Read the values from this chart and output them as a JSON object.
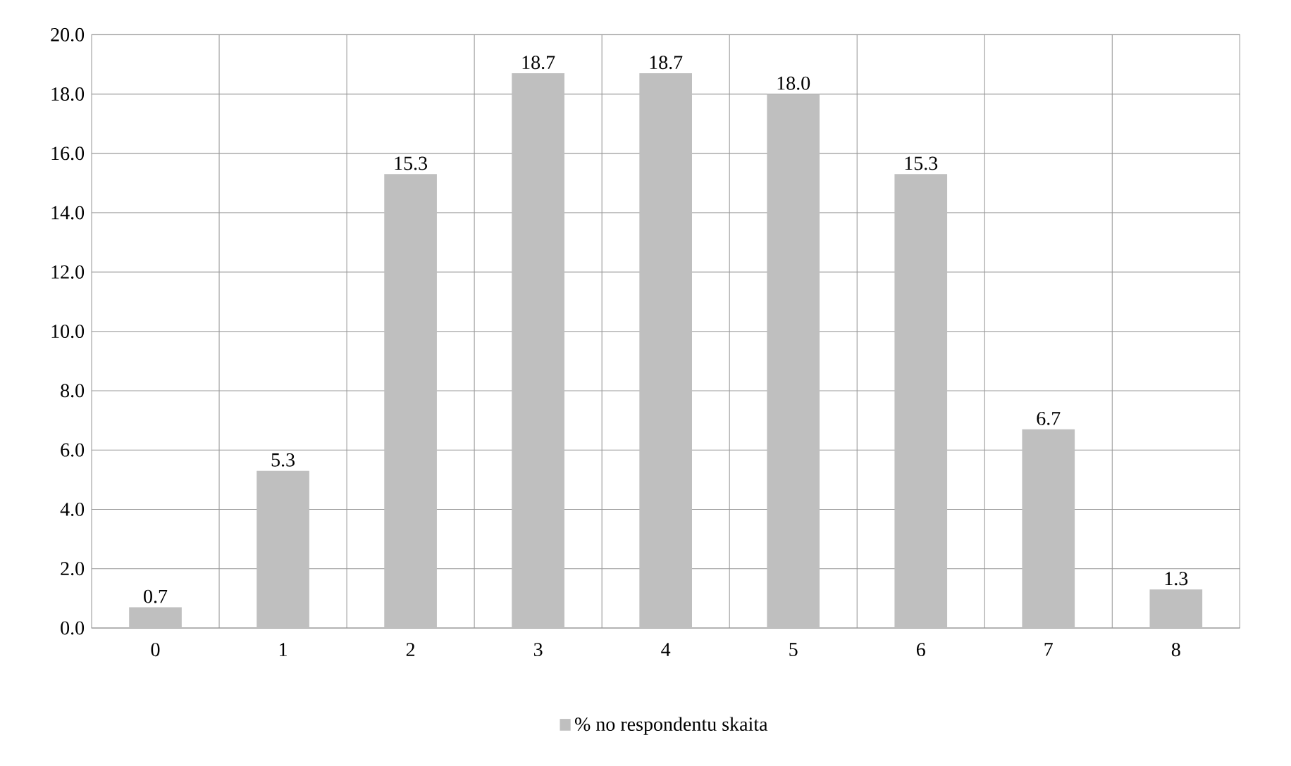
{
  "chart_data": {
    "type": "bar",
    "categories": [
      "0",
      "1",
      "2",
      "3",
      "4",
      "5",
      "6",
      "7",
      "8"
    ],
    "series": [
      {
        "name": "% no respondentu skaita",
        "color": "#bfbfbf",
        "values": [
          0.7,
          5.3,
          15.3,
          18.7,
          18.7,
          18.0,
          15.3,
          6.7,
          1.3
        ],
        "value_labels": [
          "0.7",
          "5.3",
          "15.3",
          "18.7",
          "18.7",
          "18.0",
          "15.3",
          "6.7",
          "1.3"
        ]
      }
    ],
    "ylim": [
      0,
      20
    ],
    "yticks": [
      {
        "value": 0,
        "label": "0.0"
      },
      {
        "value": 2,
        "label": "2.0"
      },
      {
        "value": 4,
        "label": "4.0"
      },
      {
        "value": 6,
        "label": "6.0"
      },
      {
        "value": 8,
        "label": "8.0"
      },
      {
        "value": 10,
        "label": "10.0"
      },
      {
        "value": 12,
        "label": "12.0"
      },
      {
        "value": 14,
        "label": "14.0"
      },
      {
        "value": 16,
        "label": "16.0"
      },
      {
        "value": 18,
        "label": "18.0"
      },
      {
        "value": 20,
        "label": "20.0"
      }
    ],
    "grid": true,
    "legend": "bottom"
  }
}
